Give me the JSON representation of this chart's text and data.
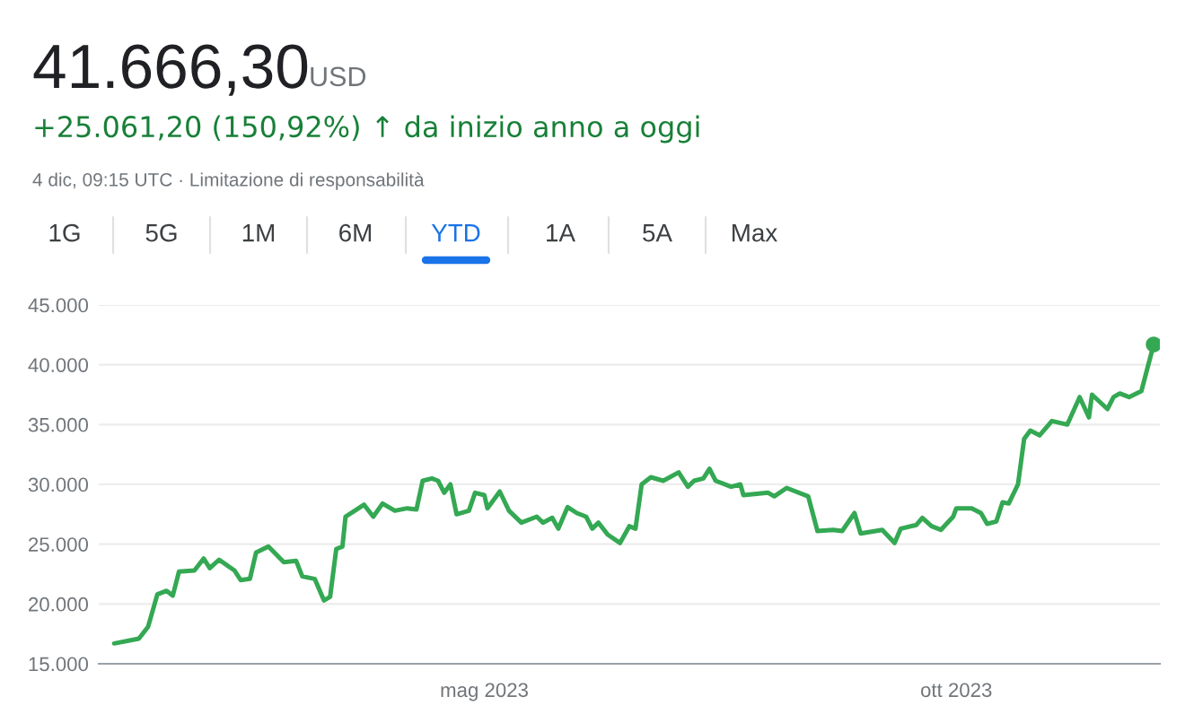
{
  "chart_data": {
    "type": "line",
    "title": "41.666,30",
    "subtitle": "+25.061,20 (150,92%) ↑ da inizio anno a oggi",
    "annotations": [
      "USD",
      "4 dic, 09:15 UTC · Limitazione di responsabilità",
      "1G",
      "5G",
      "1M",
      "6M",
      "YTD",
      "1A",
      "5A",
      "Max"
    ],
    "series": [
      {
        "color": "#34a853",
        "marker": "none",
        "x": [
          "2023-01-01",
          "2023-01-09",
          "2023-01-12",
          "2023-01-15",
          "2023-01-18",
          "2023-01-20",
          "2023-01-22",
          "2023-01-27",
          "2023-01-30",
          "2023-02-01",
          "2023-02-04",
          "2023-02-09",
          "2023-02-11",
          "2023-02-14",
          "2023-02-16",
          "2023-02-20",
          "2023-02-25",
          "2023-03-01",
          "2023-03-03",
          "2023-03-07",
          "2023-03-10",
          "2023-03-12",
          "2023-03-14",
          "2023-03-16",
          "2023-03-17",
          "2023-03-20",
          "2023-03-23",
          "2023-03-26",
          "2023-03-29",
          "2023-04-02",
          "2023-04-06",
          "2023-04-09",
          "2023-04-11",
          "2023-04-14",
          "2023-04-16",
          "2023-04-18",
          "2023-04-20",
          "2023-04-22",
          "2023-04-26",
          "2023-04-28",
          "2023-05-01",
          "2023-05-02",
          "2023-05-06",
          "2023-05-09",
          "2023-05-13",
          "2023-05-18",
          "2023-05-20",
          "2023-05-23",
          "2023-05-25",
          "2023-05-28",
          "2023-05-31",
          "2023-06-03",
          "2023-06-05",
          "2023-06-07",
          "2023-06-10",
          "2023-06-14",
          "2023-06-17",
          "2023-06-19",
          "2023-06-21",
          "2023-06-24",
          "2023-06-28",
          "2023-07-03",
          "2023-07-06",
          "2023-07-08",
          "2023-07-11",
          "2023-07-13",
          "2023-07-15",
          "2023-07-20",
          "2023-07-23",
          "2023-07-24",
          "2023-08-01",
          "2023-08-03",
          "2023-08-07",
          "2023-08-14",
          "2023-08-17",
          "2023-08-22",
          "2023-08-25",
          "2023-08-29",
          "2023-08-31",
          "2023-09-07",
          "2023-09-11",
          "2023-09-13",
          "2023-09-18",
          "2023-09-20",
          "2023-09-23",
          "2023-09-26",
          "2023-09-30",
          "2023-10-01",
          "2023-10-06",
          "2023-10-09",
          "2023-10-11",
          "2023-10-14",
          "2023-10-16",
          "2023-10-18",
          "2023-10-21",
          "2023-10-23",
          "2023-10-25",
          "2023-10-28",
          "2023-11-01",
          "2023-11-06",
          "2023-11-10",
          "2023-11-13",
          "2023-11-14",
          "2023-11-19",
          "2023-11-21",
          "2023-11-23",
          "2023-11-26",
          "2023-11-30",
          "2023-12-04"
        ],
        "values": [
          16700,
          17100,
          18100,
          20800,
          21100,
          20700,
          22700,
          22800,
          23800,
          23000,
          23700,
          22800,
          22000,
          22100,
          24300,
          24800,
          23500,
          23600,
          22300,
          22100,
          20300,
          20600,
          24600,
          24800,
          27300,
          27800,
          28300,
          27300,
          28400,
          27800,
          28000,
          27900,
          30300,
          30500,
          30300,
          29300,
          30000,
          27500,
          27800,
          29300,
          29100,
          28000,
          29400,
          27800,
          26800,
          27300,
          26800,
          27200,
          26300,
          28100,
          27600,
          27300,
          26300,
          26800,
          25800,
          25100,
          26500,
          26300,
          30000,
          30600,
          30300,
          31000,
          29800,
          30300,
          30500,
          31300,
          30300,
          29800,
          30000,
          29100,
          29300,
          29000,
          29700,
          29000,
          26100,
          26200,
          26100,
          27600,
          25900,
          26200,
          25100,
          26300,
          26600,
          27200,
          26500,
          26200,
          27300,
          28000,
          28000,
          27600,
          26700,
          26900,
          28500,
          28400,
          30000,
          33800,
          34500,
          34100,
          35300,
          35000,
          37300,
          35600,
          37500,
          36300,
          37300,
          37600,
          37300,
          37800,
          41700
        ]
      },
      {
        "type": "scatter",
        "color": "#34a853",
        "marker": "circle",
        "x": [
          "2023-12-04"
        ],
        "values": [
          41700
        ]
      }
    ],
    "xlim": [
      "2022-12-27",
      "2023-12-06"
    ],
    "xticks": [
      {
        "value": "2023-05-01",
        "label": "mag 2023"
      },
      {
        "value": "2023-10-01",
        "label": "ott 2023"
      }
    ],
    "ylim": [
      15000,
      45000
    ],
    "yticks": [
      {
        "value": 15000,
        "label": "15.000"
      },
      {
        "value": 20000,
        "label": "20.000"
      },
      {
        "value": 25000,
        "label": "25.000"
      },
      {
        "value": 30000,
        "label": "30.000"
      },
      {
        "value": 35000,
        "label": "35.000"
      },
      {
        "value": 40000,
        "label": "40.000"
      },
      {
        "value": 45000,
        "label": "45.000"
      }
    ],
    "grid": "y",
    "legend": false,
    "line_style": "solid"
  }
}
